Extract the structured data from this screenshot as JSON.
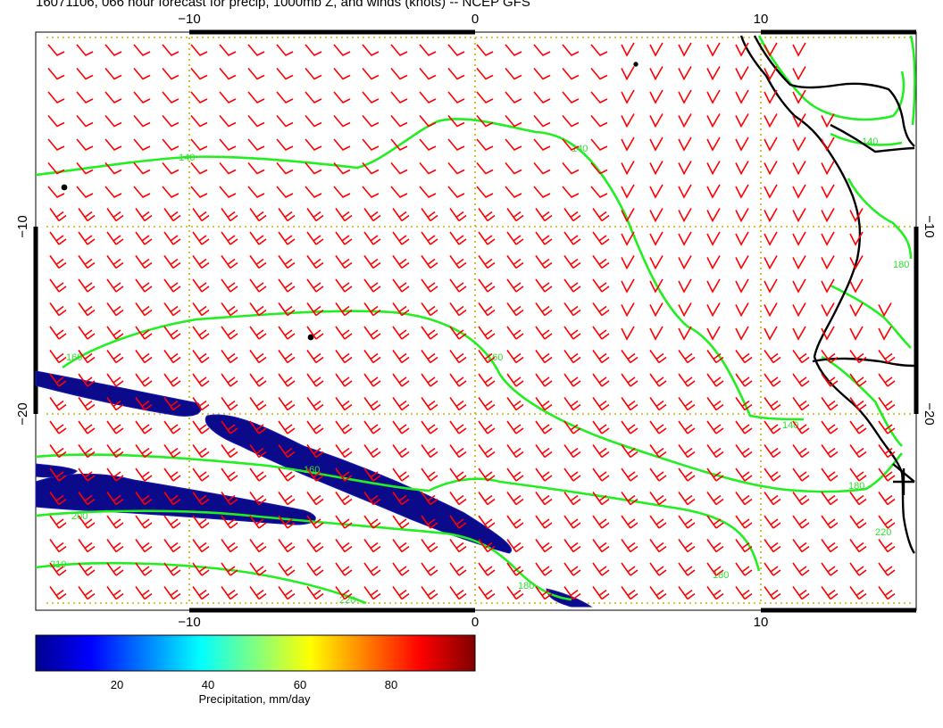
{
  "title": "16071106, 066 hour forecast for precip, 1000mb Z, and winds (knots) -- NCEP GFS",
  "map": {
    "x_ticks": [
      "−10",
      "0",
      "10"
    ],
    "y_ticks": [
      "−10",
      "−20"
    ],
    "contour_labels": [
      "140",
      "140",
      "140",
      "160",
      "160",
      "160",
      "180",
      "180",
      "180",
      "180",
      "200",
      "210",
      "220",
      "220",
      "140"
    ],
    "colors": {
      "contour": "#22ee22",
      "barb": "#ff0000",
      "coast": "#000000",
      "grid": "#c8b400",
      "precip": "#0a0a8a"
    }
  },
  "colorbar": {
    "title": "Precipitation, mm/day",
    "ticks": [
      "20",
      "40",
      "60",
      "80"
    ],
    "tick_values": [
      20,
      40,
      60,
      80
    ],
    "range": [
      2,
      98
    ],
    "colors": [
      "#00008f",
      "#0000ff",
      "#0080ff",
      "#00ffff",
      "#80ff80",
      "#ffff00",
      "#ff8000",
      "#ff0000",
      "#800000"
    ]
  }
}
